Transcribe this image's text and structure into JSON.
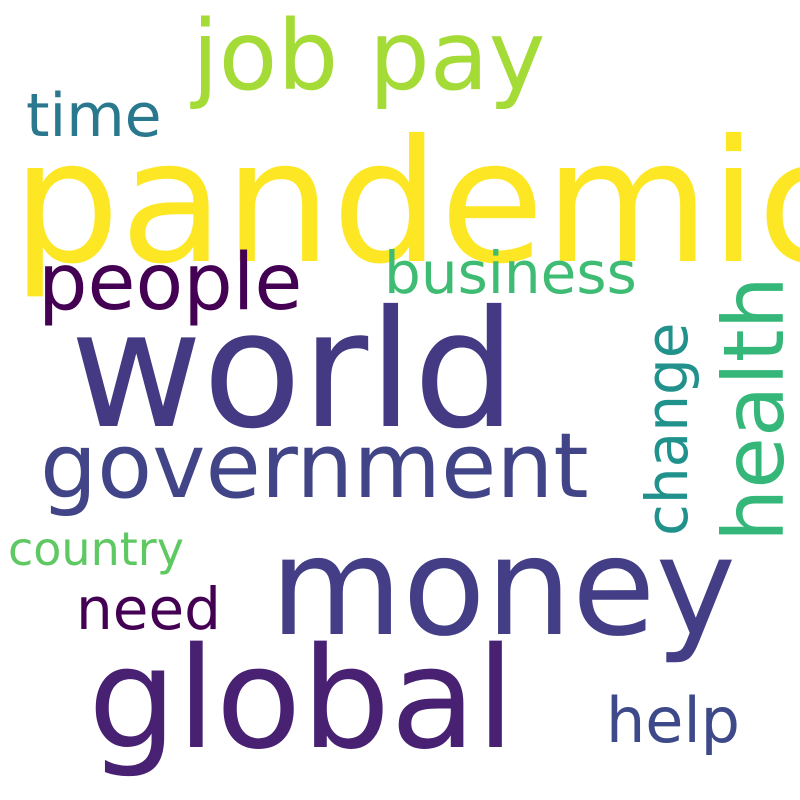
{
  "words": {
    "job_pay": {
      "text": "job pay",
      "color": "#a5db36"
    },
    "time": {
      "text": "time",
      "color": "#2a788e"
    },
    "pandemic": {
      "text": "pandemic",
      "color": "#fde725"
    },
    "people": {
      "text": "people",
      "color": "#440154"
    },
    "business": {
      "text": "business",
      "color": "#3fbc73"
    },
    "world": {
      "text": "world",
      "color": "#443983"
    },
    "health": {
      "text": "health",
      "color": "#35b779"
    },
    "change": {
      "text": "change",
      "color": "#21918c"
    },
    "government": {
      "text": "government",
      "color": "#414487"
    },
    "country": {
      "text": "country",
      "color": "#5ec962"
    },
    "money": {
      "text": "money",
      "color": "#433e85"
    },
    "need": {
      "text": "need",
      "color": "#440154"
    },
    "global": {
      "text": "global",
      "color": "#482173"
    },
    "help": {
      "text": "help",
      "color": "#3e4989"
    }
  }
}
